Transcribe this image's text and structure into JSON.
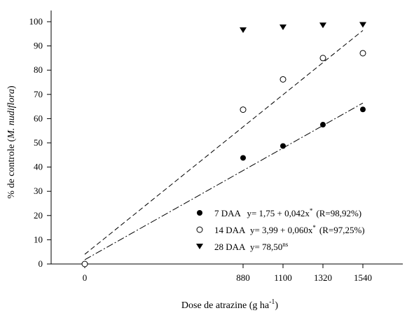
{
  "chart_data": {
    "type": "scatter",
    "xlabel": "Dose de atrazine (g ha",
    "xlabel_superscript": "-1",
    "xlabel_suffix": ")",
    "ylabel_prefix": "% de controle (",
    "ylabel_italic": "M. nudiflora",
    "ylabel_suffix": ")",
    "x_ticks": [
      0,
      880,
      1100,
      1320,
      1540
    ],
    "x_tick_labels": [
      "0",
      "880",
      "1100",
      "1320",
      "1540"
    ],
    "y_ticks": [
      0,
      10,
      20,
      30,
      40,
      50,
      60,
      70,
      80,
      90,
      100
    ],
    "ylim": [
      0,
      104
    ],
    "grid": false,
    "legend_position": "bottom-right",
    "series": [
      {
        "name": "7 DAA",
        "marker": "filled-circle",
        "color": "#000000",
        "x": [
          0,
          880,
          1100,
          1320,
          1540
        ],
        "y": [
          0,
          43.8,
          48.7,
          57.5,
          63.8
        ],
        "equation": "y= 1,75 + 0,042x",
        "equation_sup": "*",
        "fit_r": "(R=98,92%)",
        "fit": {
          "intercept": 1.75,
          "slope": 0.042
        }
      },
      {
        "name": "14 DAA",
        "marker": "open-circle",
        "color": "#000000",
        "x": [
          0,
          880,
          1100,
          1320,
          1540
        ],
        "y": [
          0,
          63.7,
          76.2,
          85.0,
          87.0
        ],
        "equation": "y= 3,99 + 0,060x",
        "equation_sup": "*",
        "fit_r": "(R=97,25%)",
        "fit": {
          "intercept": 3.99,
          "slope": 0.06
        }
      },
      {
        "name": "28 DAA",
        "marker": "filled-triangle-down",
        "color": "#000000",
        "x": [
          880,
          1100,
          1320,
          1540
        ],
        "y": [
          96.5,
          97.7,
          98.5,
          98.7
        ],
        "equation": "y= 78,50",
        "equation_sup": "ns",
        "fit_r": ""
      }
    ]
  }
}
